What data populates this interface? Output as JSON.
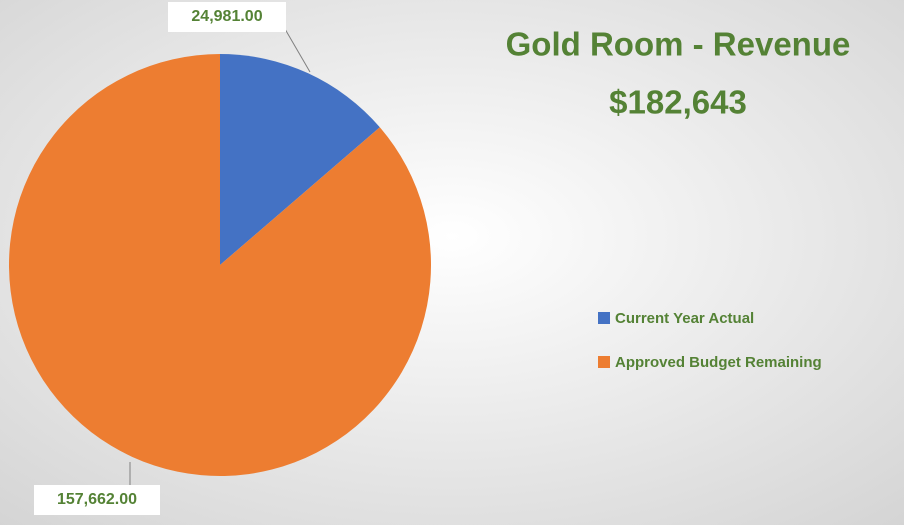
{
  "chart_data": {
    "type": "pie",
    "title": "Gold Room - Revenue",
    "subtitle": "$182,643",
    "categories": [
      "Current Year Actual",
      "Approved Budget Remaining"
    ],
    "values": [
      24981,
      157662
    ],
    "value_labels": [
      "24,981.00",
      "157,662.00"
    ],
    "colors": [
      "#4472c4",
      "#ed7d31"
    ],
    "legend": "right"
  }
}
